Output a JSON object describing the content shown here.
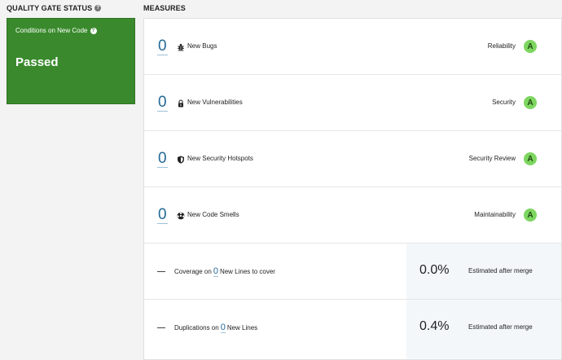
{
  "quality_gate": {
    "heading": "QUALITY GATE STATUS",
    "conditions_label": "Conditions on New Code",
    "status": "Passed",
    "status_color": "#3a8a2d"
  },
  "measures": {
    "heading": "MEASURES",
    "rows": [
      {
        "value": "0",
        "icon": "bug-icon",
        "label": "New Bugs",
        "rating_label": "Reliability",
        "rating": "A"
      },
      {
        "value": "0",
        "icon": "lock-icon",
        "label": "New Vulnerabilities",
        "rating_label": "Security",
        "rating": "A"
      },
      {
        "value": "0",
        "icon": "shield-icon",
        "label": "New Security Hotspots",
        "rating_label": "Security Review",
        "rating": "A"
      },
      {
        "value": "0",
        "icon": "code-smell-icon",
        "label": "New Code Smells",
        "rating_label": "Maintainability",
        "rating": "A"
      }
    ],
    "coverage": {
      "prefix": "Coverage on",
      "count": "0",
      "suffix": "New Lines to cover",
      "estimate_value": "0.0%",
      "estimate_label": "Estimated after merge"
    },
    "duplications": {
      "prefix": "Duplications on",
      "count": "0",
      "suffix": "New Lines",
      "estimate_value": "0.4%",
      "estimate_label": "Estimated after merge"
    },
    "rating_color": "#7dd65f",
    "link_color": "#236a97"
  }
}
